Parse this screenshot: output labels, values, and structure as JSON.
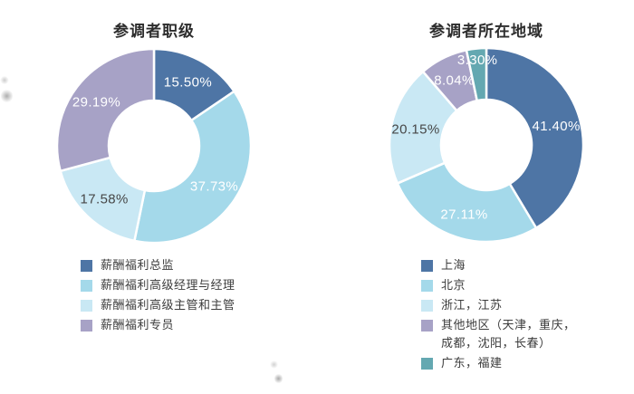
{
  "page": {
    "background": "#ffffff"
  },
  "chart_data": [
    {
      "type": "donut",
      "title": "参调者职级",
      "legend_position": "bottom-left",
      "slices": [
        {
          "label": "薪酬福利总监",
          "value": 15.5,
          "display": "15.50%",
          "color": "#4e75a5",
          "label_color": "#ffffff"
        },
        {
          "label": "薪酬福利高级经理与经理",
          "value": 37.73,
          "display": "37.73%",
          "color": "#a4d9ea",
          "label_color": "#ffffff"
        },
        {
          "label": "薪酬福利高级主管和主管",
          "value": 17.58,
          "display": "17.58%",
          "color": "#c9e8f4",
          "label_color": "#474747"
        },
        {
          "label": "薪酬福利专员",
          "value": 29.19,
          "display": "29.19%",
          "color": "#a7a2c6",
          "label_color": "#ffffff"
        }
      ]
    },
    {
      "type": "donut",
      "title": "参调者所在地域",
      "legend_position": "bottom-left",
      "slices": [
        {
          "label": "上海",
          "value": 41.4,
          "display": "41.40%",
          "color": "#4e75a5",
          "label_color": "#ffffff"
        },
        {
          "label": "北京",
          "value": 27.11,
          "display": "27.11%",
          "color": "#a4d9ea",
          "label_color": "#ffffff"
        },
        {
          "label": "浙江，江苏",
          "value": 20.15,
          "display": "20.15%",
          "color": "#c9e8f4",
          "label_color": "#474747"
        },
        {
          "label": "其他地区（天津，重庆，成都，沈阳，长春）",
          "value": 8.04,
          "display": "8.04%",
          "color": "#a7a2c6",
          "label_color": "#ffffff"
        },
        {
          "label": "广东，福建",
          "value": 3.3,
          "display": "3.30%",
          "color": "#64a8b1",
          "label_color": "#ffffff"
        }
      ]
    }
  ]
}
